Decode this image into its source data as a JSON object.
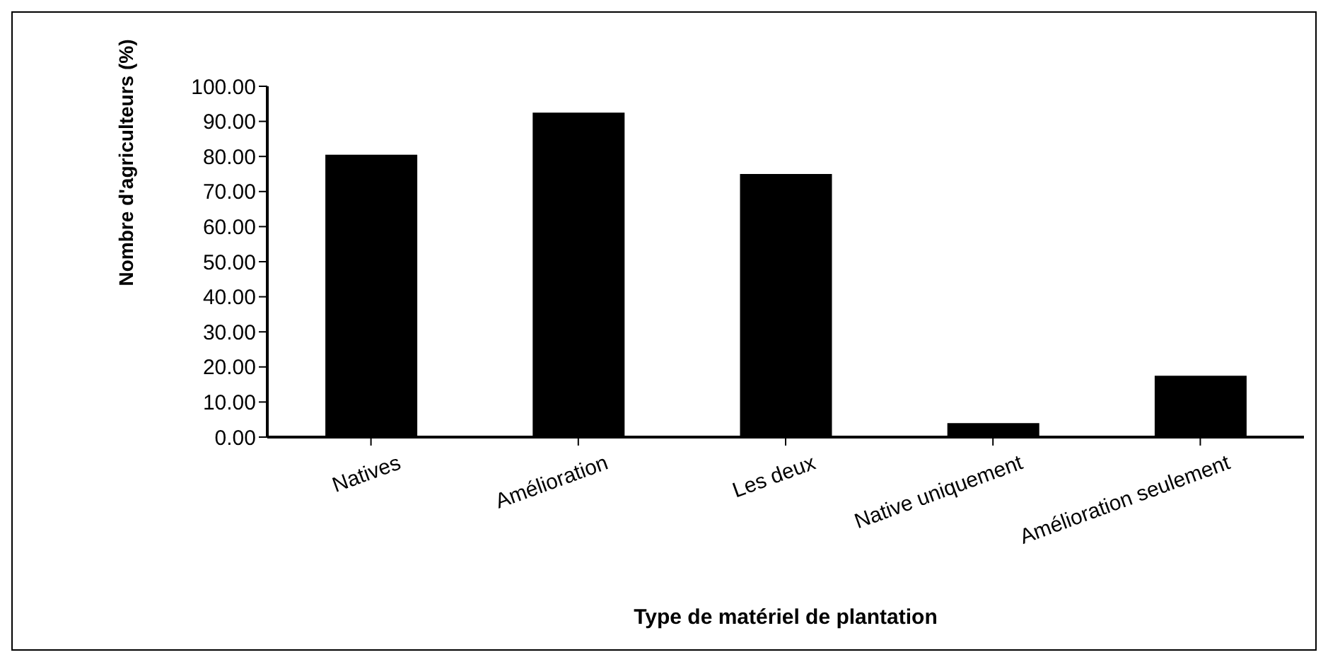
{
  "chart_data": {
    "type": "bar",
    "xlabel": "Type de matériel de plantation",
    "ylabel": "Nombre d'agriculteurs (%)",
    "categories": [
      "Natives",
      "Amélioration",
      "Les deux",
      "Native uniquement",
      "Amélioration seulement"
    ],
    "values": [
      80.5,
      92.5,
      75,
      4,
      17.5
    ],
    "color": "#000000",
    "ylim": [
      0,
      100
    ],
    "yticks": [
      {
        "value": 0,
        "label": "0.00"
      },
      {
        "value": 10,
        "label": "10.00"
      },
      {
        "value": 20,
        "label": "20.00"
      },
      {
        "value": 30,
        "label": "30.00"
      },
      {
        "value": 40,
        "label": "40.00"
      },
      {
        "value": 50,
        "label": "50.00"
      },
      {
        "value": 60,
        "label": "60.00"
      },
      {
        "value": 70,
        "label": "70.00"
      },
      {
        "value": 80,
        "label": "80.00"
      },
      {
        "value": 90,
        "label": "90.00"
      },
      {
        "value": 100,
        "label": "100.00"
      }
    ],
    "grid": false
  }
}
